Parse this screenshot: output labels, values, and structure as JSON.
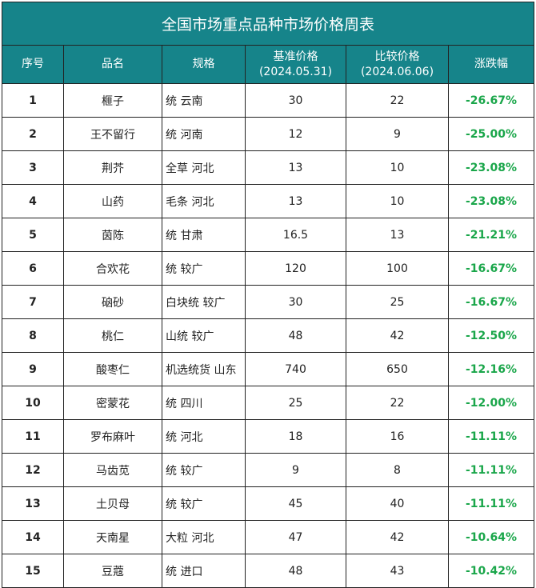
{
  "title": "全国市场重点品种市场价格周表",
  "headers": {
    "index": "序号",
    "name": "品名",
    "spec": "规格",
    "base_price": "基准价格",
    "base_date": "(2024.05.31)",
    "compare_price": "比较价格",
    "compare_date": "(2024.06.06)",
    "change": "涨跌幅"
  },
  "rows": [
    {
      "index": "1",
      "name": "榧子",
      "spec": "统 云南",
      "base": "30",
      "compare": "22",
      "change": "-26.67%"
    },
    {
      "index": "2",
      "name": "王不留行",
      "spec": "统 河南",
      "base": "12",
      "compare": "9",
      "change": "-25.00%"
    },
    {
      "index": "3",
      "name": "荆芥",
      "spec": "全草 河北",
      "base": "13",
      "compare": "10",
      "change": "-23.08%"
    },
    {
      "index": "4",
      "name": "山药",
      "spec": "毛条 河北",
      "base": "13",
      "compare": "10",
      "change": "-23.08%"
    },
    {
      "index": "5",
      "name": "茵陈",
      "spec": "统 甘肃",
      "base": "16.5",
      "compare": "13",
      "change": "-21.21%"
    },
    {
      "index": "6",
      "name": "合欢花",
      "spec": "统 较广",
      "base": "120",
      "compare": "100",
      "change": "-16.67%"
    },
    {
      "index": "7",
      "name": "硇砂",
      "spec": "白块统 较广",
      "base": "30",
      "compare": "25",
      "change": "-16.67%"
    },
    {
      "index": "8",
      "name": "桃仁",
      "spec": "山统 较广",
      "base": "48",
      "compare": "42",
      "change": "-12.50%"
    },
    {
      "index": "9",
      "name": "酸枣仁",
      "spec": "机选统货 山东",
      "base": "740",
      "compare": "650",
      "change": "-12.16%"
    },
    {
      "index": "10",
      "name": "密蒙花",
      "spec": "统 四川",
      "base": "25",
      "compare": "22",
      "change": "-12.00%"
    },
    {
      "index": "11",
      "name": "罗布麻叶",
      "spec": "统 河北",
      "base": "18",
      "compare": "16",
      "change": "-11.11%"
    },
    {
      "index": "12",
      "name": "马齿苋",
      "spec": "统 较广",
      "base": "9",
      "compare": "8",
      "change": "-11.11%"
    },
    {
      "index": "13",
      "name": "土贝母",
      "spec": "统 较广",
      "base": "45",
      "compare": "40",
      "change": "-11.11%"
    },
    {
      "index": "14",
      "name": "天南星",
      "spec": "大粒 河北",
      "base": "47",
      "compare": "42",
      "change": "-10.64%"
    },
    {
      "index": "15",
      "name": "豆蔻",
      "spec": "统 进口",
      "base": "48",
      "compare": "43",
      "change": "-10.42%"
    }
  ],
  "colors": {
    "header_bg": "#16848a",
    "header_text": "#ffffff",
    "change_text": "#1aa64a"
  }
}
